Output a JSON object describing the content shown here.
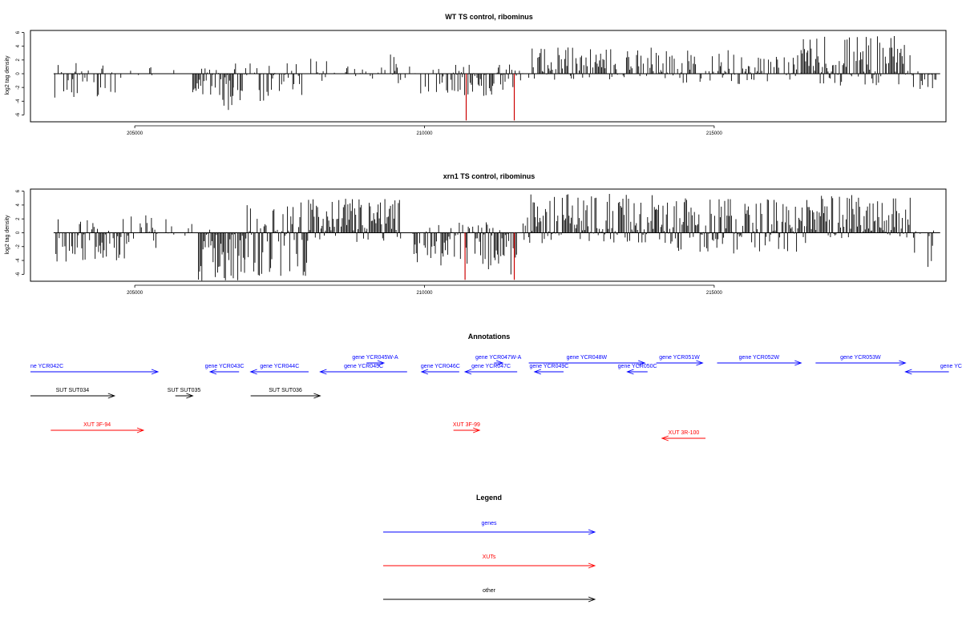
{
  "chart_data": [
    {
      "type": "bar",
      "title": "WT TS control, ribominus",
      "ylabel": "log2 tag density",
      "xlim": [
        203200,
        219000
      ],
      "ylim": [
        -7,
        6.3
      ],
      "yticks": [
        6,
        4,
        2,
        0,
        -2,
        -4,
        -6
      ],
      "xticks": [
        205000,
        210000,
        215000
      ],
      "baseline": [
        203600,
        218900
      ],
      "bar_color": "#000000",
      "highlight_color": "#cc0000",
      "highlights": [
        {
          "x": 210720,
          "y": -6.8
        },
        {
          "x": 211550,
          "y": -6.8
        }
      ],
      "segments": [
        {
          "x0": 203600,
          "x1": 204100,
          "density": 0.5,
          "min": -3.5,
          "max": 2.0
        },
        {
          "x0": 204100,
          "x1": 204850,
          "density": 0.45,
          "min": -3.5,
          "max": 1.2
        },
        {
          "x0": 204850,
          "x1": 205300,
          "density": 0.3,
          "min": -3.0,
          "max": 3.2
        },
        {
          "x0": 205500,
          "x1": 205800,
          "density": 0.1,
          "min": -0.5,
          "max": 2.0
        },
        {
          "x0": 206000,
          "x1": 206500,
          "density": 0.8,
          "min": -3.5,
          "max": 0.8
        },
        {
          "x0": 206500,
          "x1": 206700,
          "density": 0.8,
          "min": -6.0,
          "max": 0.5
        },
        {
          "x0": 206700,
          "x1": 207900,
          "density": 0.7,
          "min": -4.0,
          "max": 2.0
        },
        {
          "x0": 208000,
          "x1": 209800,
          "density": 0.45,
          "min": -1.5,
          "max": 2.8
        },
        {
          "x0": 209800,
          "x1": 210500,
          "density": 0.45,
          "min": -3.0,
          "max": 1.0
        },
        {
          "x0": 210500,
          "x1": 211600,
          "density": 0.8,
          "min": -3.5,
          "max": 1.5
        },
        {
          "x0": 211600,
          "x1": 211750,
          "density": 0.3,
          "min": -1.0,
          "max": 0.5
        },
        {
          "x0": 211800,
          "x1": 214000,
          "density": 0.8,
          "min": -1.0,
          "max": 4.0
        },
        {
          "x0": 214000,
          "x1": 216500,
          "density": 0.75,
          "min": -1.5,
          "max": 3.5
        },
        {
          "x0": 216500,
          "x1": 218400,
          "density": 1.0,
          "min": -2.0,
          "max": 5.7
        },
        {
          "x0": 218400,
          "x1": 218850,
          "density": 0.5,
          "min": -4.2,
          "max": 0.5
        }
      ]
    },
    {
      "type": "bar",
      "title": "xrn1 TS control, ribominus",
      "ylabel": "log2 tag density",
      "xlim": [
        203200,
        219000
      ],
      "ylim": [
        -7,
        6.3
      ],
      "yticks": [
        6,
        4,
        2,
        0,
        -2,
        -4,
        -6
      ],
      "xticks": [
        205000,
        210000,
        215000
      ],
      "baseline": [
        203600,
        218900
      ],
      "bar_color": "#000000",
      "highlight_color": "#cc0000",
      "highlights": [
        {
          "x": 210700,
          "y": -6.8
        },
        {
          "x": 211550,
          "y": -6.8
        }
      ],
      "segments": [
        {
          "x0": 203600,
          "x1": 204900,
          "density": 0.8,
          "min": -4.5,
          "max": 2.0
        },
        {
          "x0": 204900,
          "x1": 205400,
          "density": 0.5,
          "min": -2.5,
          "max": 3.0
        },
        {
          "x0": 205500,
          "x1": 206000,
          "density": 0.15,
          "min": -0.5,
          "max": 2.5
        },
        {
          "x0": 206100,
          "x1": 206900,
          "density": 1.0,
          "min": -7.0,
          "max": 1.0
        },
        {
          "x0": 206900,
          "x1": 208000,
          "density": 1.0,
          "min": -6.5,
          "max": 4.5
        },
        {
          "x0": 208000,
          "x1": 209600,
          "density": 1.0,
          "min": -1.5,
          "max": 5.0
        },
        {
          "x0": 209800,
          "x1": 210600,
          "density": 0.9,
          "min": -5.0,
          "max": 1.5
        },
        {
          "x0": 210600,
          "x1": 211600,
          "density": 1.0,
          "min": -6.5,
          "max": 1.5
        },
        {
          "x0": 211700,
          "x1": 214000,
          "density": 1.0,
          "min": -1.5,
          "max": 5.7
        },
        {
          "x0": 214000,
          "x1": 216600,
          "density": 1.0,
          "min": -3.0,
          "max": 5.0
        },
        {
          "x0": 216600,
          "x1": 218400,
          "density": 1.0,
          "min": -0.8,
          "max": 5.6
        },
        {
          "x0": 218400,
          "x1": 218850,
          "density": 0.6,
          "min": -5.5,
          "max": 0.5
        }
      ]
    }
  ],
  "annotations": {
    "title": "Annotations",
    "features": [
      {
        "label": "ne YCR042C",
        "type": "genes",
        "x0": 203200,
        "x1": 205400,
        "dir": "right",
        "row": "genes_b",
        "label_at": "start"
      },
      {
        "label": "gene YCR043C",
        "type": "genes",
        "x0": 206300,
        "x1": 206800,
        "dir": "left",
        "row": "genes_b"
      },
      {
        "label": "gene YCR044C",
        "type": "genes",
        "x0": 207000,
        "x1": 208000,
        "dir": "left",
        "row": "genes_b"
      },
      {
        "label": "gene YCR045W-A",
        "type": "genes",
        "x0": 209000,
        "x1": 209300,
        "dir": "right",
        "row": "genes_a"
      },
      {
        "label": "gene YCR045C",
        "type": "genes",
        "x0": 208200,
        "x1": 209700,
        "dir": "left",
        "row": "genes_b"
      },
      {
        "label": "gene YCR046C",
        "type": "genes",
        "x0": 209950,
        "x1": 210600,
        "dir": "left",
        "row": "genes_b"
      },
      {
        "label": "gene YCR047W-A",
        "type": "genes",
        "x0": 211200,
        "x1": 211350,
        "dir": "right",
        "row": "genes_a"
      },
      {
        "label": "gene YCR047C",
        "type": "genes",
        "x0": 210700,
        "x1": 211600,
        "dir": "left",
        "row": "genes_b"
      },
      {
        "label": "gene YCR048W",
        "type": "genes",
        "x0": 211800,
        "x1": 213800,
        "dir": "right",
        "row": "genes_a"
      },
      {
        "label": "gene YCR049C",
        "type": "genes",
        "x0": 211900,
        "x1": 212400,
        "dir": "left",
        "row": "genes_b"
      },
      {
        "label": "gene YCR050C",
        "type": "genes",
        "x0": 213500,
        "x1": 213850,
        "dir": "left",
        "row": "genes_b"
      },
      {
        "label": "gene YCR051W",
        "type": "genes",
        "x0": 214000,
        "x1": 214800,
        "dir": "right",
        "row": "genes_a"
      },
      {
        "label": "gene YCR052W",
        "type": "genes",
        "x0": 215050,
        "x1": 216500,
        "dir": "right",
        "row": "genes_a"
      },
      {
        "label": "gene YCR053W",
        "type": "genes",
        "x0": 216750,
        "x1": 218300,
        "dir": "right",
        "row": "genes_a"
      },
      {
        "label": "gene YC",
        "type": "genes",
        "x0": 218300,
        "x1": 219050,
        "dir": "left",
        "row": "genes_b",
        "label_at": "end"
      },
      {
        "label": "SUT SUT034",
        "type": "other",
        "x0": 203200,
        "x1": 204650,
        "dir": "right",
        "row": "sut"
      },
      {
        "label": "SUT SUT035",
        "type": "other",
        "x0": 205700,
        "x1": 206000,
        "dir": "right",
        "row": "sut"
      },
      {
        "label": "SUT SUT036",
        "type": "other",
        "x0": 207000,
        "x1": 208200,
        "dir": "right",
        "row": "sut"
      },
      {
        "label": "XUT 3F-94",
        "type": "XUTs",
        "x0": 203550,
        "x1": 205150,
        "dir": "right",
        "row": "xut_a"
      },
      {
        "label": "XUT 3F-99",
        "type": "XUTs",
        "x0": 210500,
        "x1": 210950,
        "dir": "right",
        "row": "xut_a"
      },
      {
        "label": "XUT 3R-100",
        "type": "XUTs",
        "x0": 214100,
        "x1": 214850,
        "dir": "left",
        "row": "xut_b"
      }
    ]
  },
  "legend": {
    "title": "Legend",
    "items": [
      {
        "label": "genes",
        "color": "#0000ff"
      },
      {
        "label": "XUTs",
        "color": "#ff0000"
      },
      {
        "label": "other",
        "color": "#000000"
      }
    ]
  },
  "colors": {
    "genes": "#0000ff",
    "XUTs": "#ff0000",
    "other": "#000000",
    "axis": "#000000"
  }
}
